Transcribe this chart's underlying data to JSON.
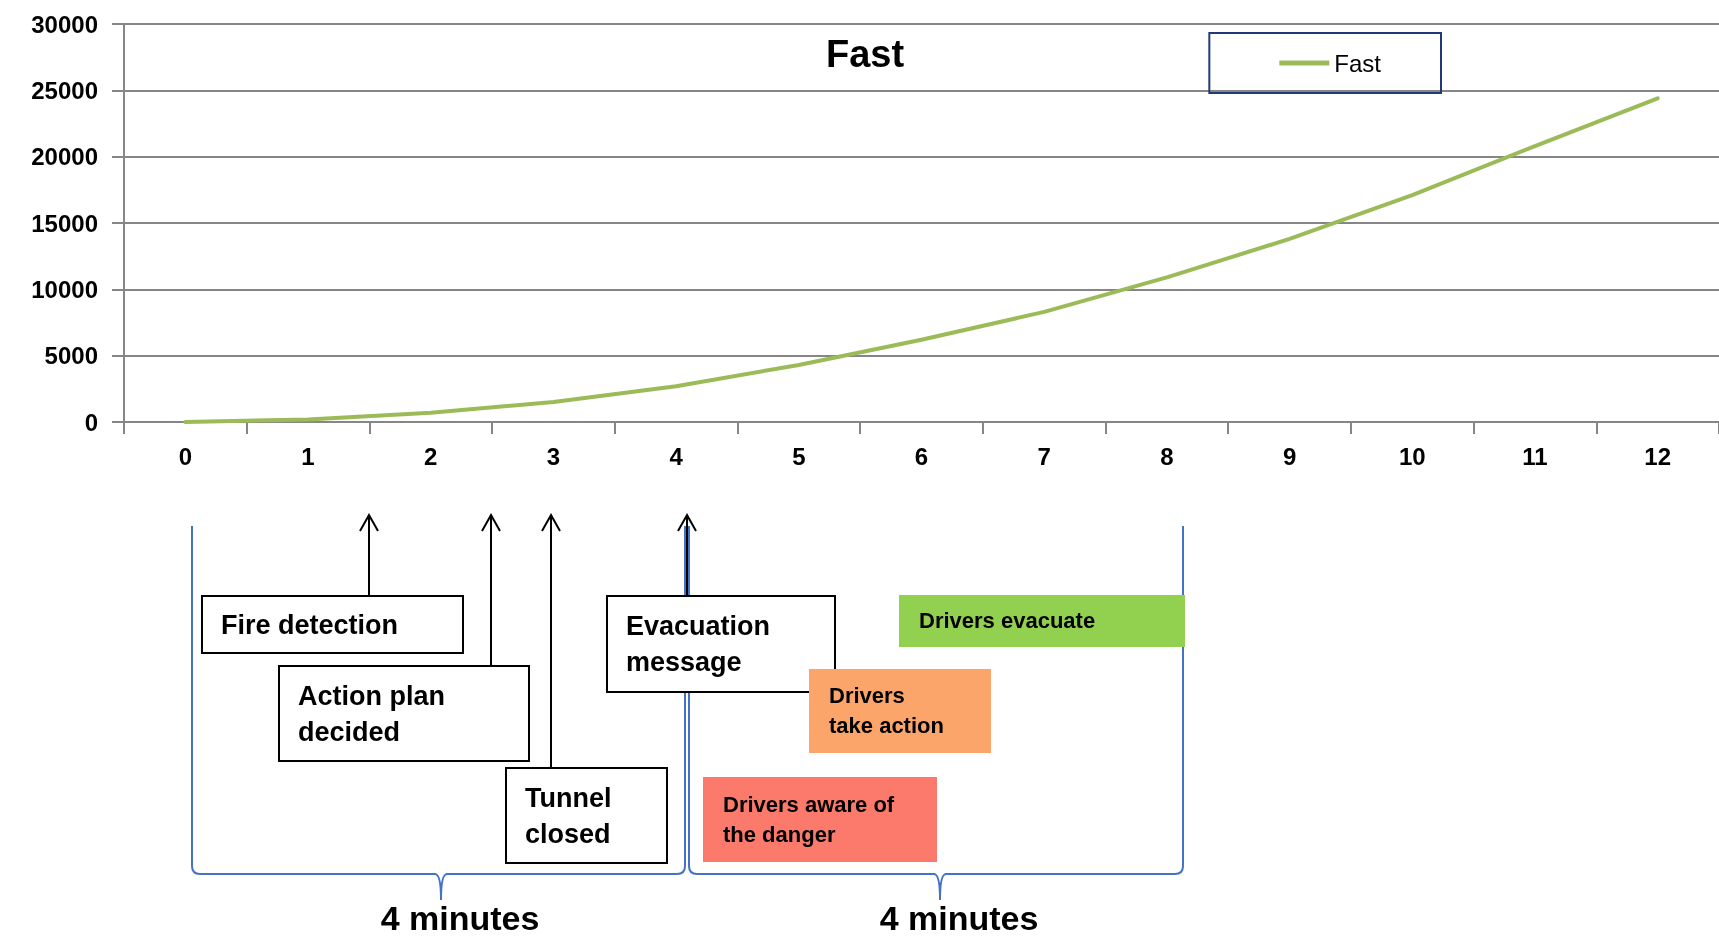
{
  "chart_data": {
    "type": "line",
    "title": "Fast",
    "x": [
      0,
      1,
      2,
      3,
      4,
      5,
      6,
      7,
      8,
      9,
      10,
      11,
      12
    ],
    "series": [
      {
        "name": "Fast",
        "color": "#9bbb59",
        "values": [
          0,
          190,
          700,
          1500,
          2700,
          4300,
          6200,
          8300,
          10900,
          13800,
          17100,
          20800,
          24400
        ]
      }
    ],
    "xlim": [
      -0.5,
      12.5
    ],
    "xticks": [
      {
        "value": -0.5,
        "label": null
      },
      0,
      {
        "value": 0.5,
        "label": null
      },
      1,
      {
        "value": 1.5,
        "label": null
      },
      2,
      {
        "value": 2.5,
        "label": null
      },
      3,
      {
        "value": 3.5,
        "label": null
      },
      4,
      {
        "value": 4.5,
        "label": null
      },
      5,
      {
        "value": 5.5,
        "label": null
      },
      6,
      {
        "value": 6.5,
        "label": null
      },
      7,
      {
        "value": 7.5,
        "label": null
      },
      8,
      {
        "value": 8.5,
        "label": null
      },
      9,
      {
        "value": 9.5,
        "label": null
      },
      10,
      {
        "value": 10.5,
        "label": null
      },
      11,
      {
        "value": 11.5,
        "label": null
      },
      12,
      {
        "value": 12.5,
        "label": null
      }
    ],
    "ylim": [
      0,
      30000
    ],
    "yticks": [
      0,
      5000,
      10000,
      15000,
      20000,
      25000,
      30000
    ],
    "grid": "y",
    "legend": "top right",
    "marker": "none",
    "line_style": "solid",
    "annotations": [
      "Fire detection",
      "Action plan decided",
      "Tunnel closed",
      "Evacuation message",
      "Drivers evacuate",
      "Drivers take action",
      "Drivers aware of the danger",
      "4 minutes",
      "4 minutes"
    ]
  }
}
